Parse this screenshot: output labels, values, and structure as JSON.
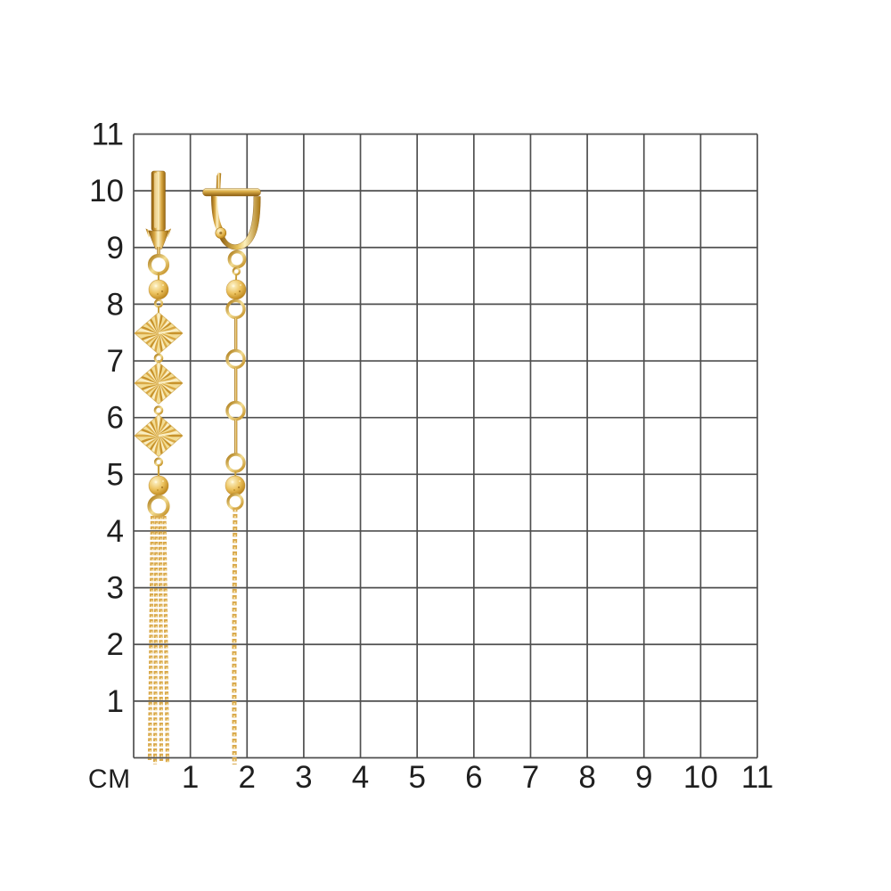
{
  "grid": {
    "unit_label": "см",
    "left_labels": [
      "11",
      "10",
      "9",
      "8",
      "7",
      "6",
      "5",
      "4",
      "3",
      "2",
      "1"
    ],
    "bottom_labels": [
      "1",
      "2",
      "3",
      "4",
      "5",
      "6",
      "7",
      "8",
      "9",
      "10",
      "11"
    ],
    "rows": 11,
    "cols": 11,
    "line_color": "#4f4f4f",
    "label_color": "#1f1f1f",
    "background": "#ffffff"
  },
  "jewelry": {
    "metal_colors": {
      "gold_base": "#d9a843",
      "gold_highlight": "#fdf2c6",
      "gold_shadow": "#8a5c10",
      "plate_base": "#f2dc9c",
      "ray_dark": "#c8932b",
      "ray_light": "#faeec2",
      "chain": "#d9a94c"
    },
    "left_earring_parts": [
      "lever-back-front-view",
      "ring",
      "faceted-bead",
      "sunburst-diamond-plate",
      "sunburst-diamond-plate",
      "sunburst-diamond-plate",
      "faceted-bead",
      "ring",
      "tassel-of-chains"
    ],
    "right_earring_parts": [
      "lever-back-side-view",
      "ring",
      "faceted-bead",
      "bar-and-ring-chain",
      "faceted-bead",
      "rope-chain"
    ]
  }
}
